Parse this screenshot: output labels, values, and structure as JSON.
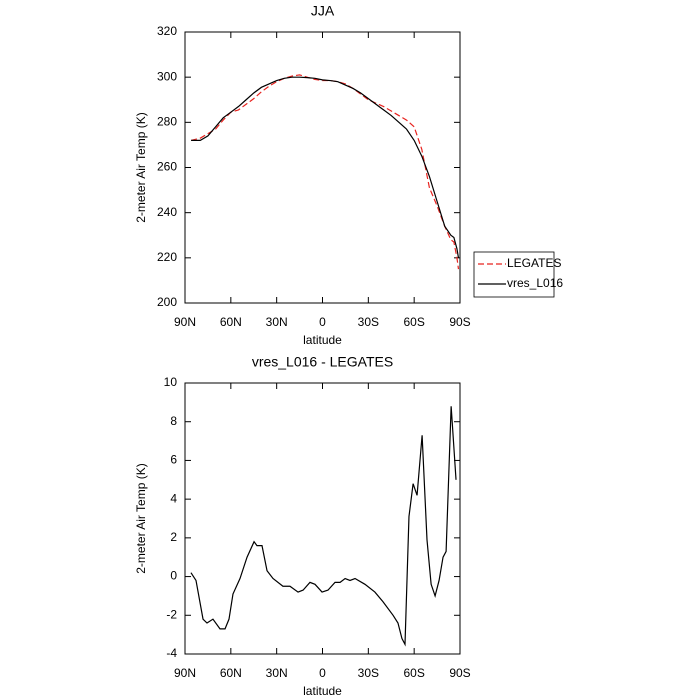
{
  "chart_data": [
    {
      "type": "line",
      "title": "JJA",
      "xlabel": "latitude",
      "ylabel": "2-meter Air Temp (K)",
      "xlim": [
        90,
        -90
      ],
      "ylim": [
        200,
        320
      ],
      "xticks": [
        {
          "value": 90,
          "label": "90N"
        },
        {
          "value": 60,
          "label": "60N"
        },
        {
          "value": 30,
          "label": "30N"
        },
        0,
        {
          "value": -30,
          "label": "30S"
        },
        {
          "value": -60,
          "label": "60S"
        },
        {
          "value": -90,
          "label": "90S"
        }
      ],
      "yticks": [
        200,
        220,
        240,
        260,
        280,
        300,
        320
      ],
      "legend": "right",
      "x": [
        86,
        80,
        75,
        70,
        65,
        60,
        55,
        50,
        45,
        40,
        35,
        30,
        25,
        20,
        15,
        10,
        5,
        0,
        -5,
        -10,
        -15,
        -20,
        -25,
        -30,
        -35,
        -40,
        -45,
        -50,
        -55,
        -60,
        -65,
        -70,
        -75,
        -80,
        -84,
        -86,
        -88,
        -89
      ],
      "series": [
        {
          "name": "LEGATES",
          "color": "#e8231f",
          "dashed": true,
          "values": [
            272,
            273,
            275,
            277,
            281,
            284.5,
            285.5,
            288,
            290.5,
            293.5,
            296,
            298,
            299.5,
            300.5,
            301,
            300,
            299,
            298.5,
            298.5,
            298,
            297,
            295,
            292.5,
            290,
            288.5,
            287,
            285,
            283,
            281,
            278,
            268,
            251,
            243,
            234,
            228,
            227,
            220,
            215
          ]
        },
        {
          "name": "vres_L016",
          "color": "#000000",
          "dashed": false,
          "values": [
            272,
            272,
            274,
            278,
            282,
            284.5,
            287,
            290,
            293,
            295.5,
            297,
            298.5,
            299.5,
            300,
            300,
            299.8,
            299.5,
            298.8,
            298.5,
            298,
            296.5,
            295,
            293,
            290.5,
            288,
            285.5,
            283,
            280,
            277,
            272,
            265,
            256,
            245,
            234,
            230,
            229,
            224,
            220
          ]
        }
      ]
    },
    {
      "type": "line",
      "title": "vres_L016 - LEGATES",
      "xlabel": "latitude",
      "ylabel": "2-meter Air Temp (K)",
      "xlim": [
        90,
        -90
      ],
      "ylim": [
        -4,
        10
      ],
      "xticks": [
        {
          "value": 90,
          "label": "90N"
        },
        {
          "value": 60,
          "label": "60N"
        },
        {
          "value": 30,
          "label": "30N"
        },
        0,
        {
          "value": -30,
          "label": "30S"
        },
        {
          "value": -60,
          "label": "60S"
        },
        {
          "value": -90,
          "label": "90S"
        }
      ],
      "yticks": [
        -4,
        -2,
        0,
        2,
        4,
        6,
        8,
        10
      ],
      "x": [
        86.1,
        82.8,
        78.2,
        75.6,
        71.7,
        67.1,
        63.8,
        61.2,
        58.6,
        54,
        49.4,
        44.8,
        42.9,
        39.6,
        36.3,
        32.4,
        25.9,
        21.3,
        16,
        12.7,
        8.2,
        4.9,
        0.3,
        -3.6,
        -8.2,
        -11.5,
        -14.8,
        -18,
        -21.3,
        -27.8,
        -34.3,
        -39.6,
        -46.2,
        -49.4,
        -52,
        -54,
        -56.6,
        -59.3,
        -61.9,
        -65.2,
        -68.4,
        -71.1,
        -73.7,
        -76.3,
        -78.9,
        -80.9,
        -84.2,
        -87.4
      ],
      "series": [
        {
          "color": "#000000",
          "dashed": false,
          "values": [
            0.2,
            -0.2,
            -2.2,
            -2.4,
            -2.2,
            -2.7,
            -2.7,
            -2.2,
            -0.9,
            -0.1,
            1,
            1.8,
            1.6,
            1.6,
            0.3,
            -0.1,
            -0.5,
            -0.5,
            -0.8,
            -0.7,
            -0.3,
            -0.4,
            -0.8,
            -0.7,
            -0.3,
            -0.3,
            -0.1,
            -0.2,
            -0.1,
            -0.4,
            -0.8,
            -1.3,
            -2,
            -2.4,
            -3.2,
            -3.5,
            3.1,
            4.8,
            4.2,
            7.3,
            1.9,
            -0.4,
            -1,
            -0.2,
            1,
            1.3,
            8.8,
            5
          ]
        }
      ]
    }
  ]
}
